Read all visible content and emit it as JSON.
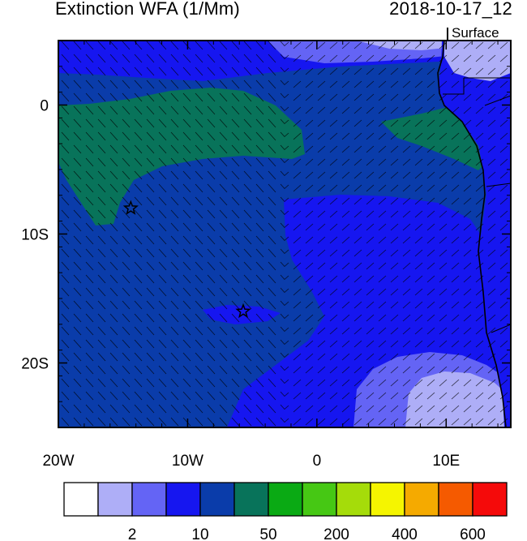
{
  "header": {
    "title": "Extinction WFA (1/Mm)",
    "datetime": "2018-10-17_12",
    "level": "Surface"
  },
  "map": {
    "lon_range": [
      -20,
      15
    ],
    "lat_range": [
      -25,
      5
    ],
    "x_ticks": [
      {
        "lon": -20,
        "label": "20W"
      },
      {
        "lon": -10,
        "label": "10W"
      },
      {
        "lon": 0,
        "label": "0"
      },
      {
        "lon": 10,
        "label": "10E"
      }
    ],
    "y_ticks": [
      {
        "lat": 0,
        "label": "0"
      },
      {
        "lat": -10,
        "label": "10S"
      },
      {
        "lat": -20,
        "label": "20S"
      }
    ],
    "markers": [
      {
        "name": "star",
        "lon": -14.4,
        "lat": -8.0
      },
      {
        "name": "star",
        "lon": -5.7,
        "lat": -16.0
      }
    ]
  },
  "colorbar": {
    "colors": [
      "#ffffff",
      "#aeaef7",
      "#6464f5",
      "#1616f0",
      "#0a3caa",
      "#08735a",
      "#0aaa14",
      "#46c814",
      "#a5dc0a",
      "#f5f500",
      "#f5aa00",
      "#f55a00",
      "#f50a0a"
    ],
    "labels": [
      {
        "after_box": 1,
        "text": "2"
      },
      {
        "after_box": 3,
        "text": "10"
      },
      {
        "after_box": 5,
        "text": "50"
      },
      {
        "after_box": 7,
        "text": "200"
      },
      {
        "after_box": 9,
        "text": "400"
      },
      {
        "after_box": 11,
        "text": "600"
      }
    ]
  }
}
